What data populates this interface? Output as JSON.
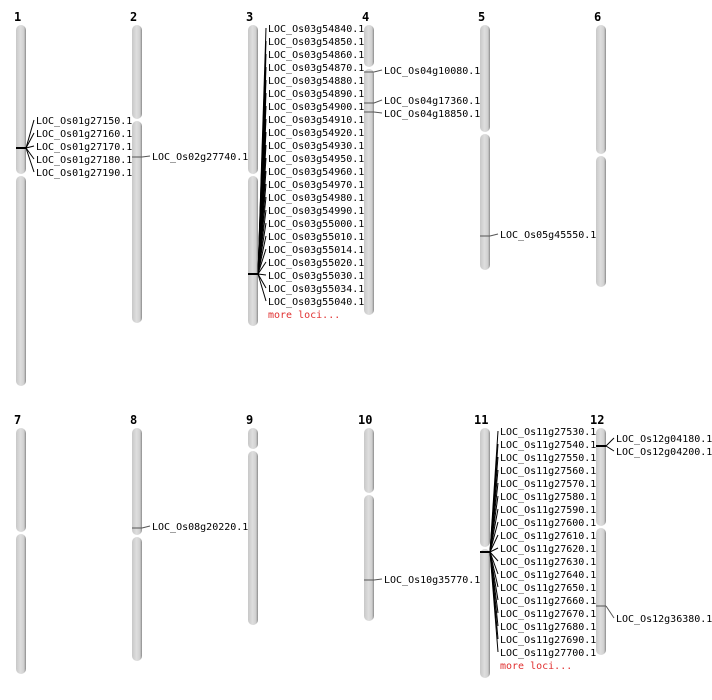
{
  "colors": {
    "chromosome": "#d4d4d4",
    "chromosome_shadow": "#8a8a8a",
    "more_loci": "#e03030"
  },
  "chromosomes": [
    {
      "name": "1",
      "markers": [
        {
          "loci": [
            "LOC_Os01g27150.1",
            "LOC_Os01g27160.1",
            "LOC_Os01g27170.1",
            "LOC_Os01g27180.1",
            "LOC_Os01g27190.1"
          ]
        }
      ]
    },
    {
      "name": "2",
      "markers": [
        {
          "loci": [
            "LOC_Os02g27740.1"
          ]
        }
      ]
    },
    {
      "name": "3",
      "markers": [
        {
          "loci": [
            "LOC_Os03g54840.1",
            "LOC_Os03g54850.1",
            "LOC_Os03g54860.1",
            "LOC_Os03g54870.1",
            "LOC_Os03g54880.1",
            "LOC_Os03g54890.1",
            "LOC_Os03g54900.1",
            "LOC_Os03g54910.1",
            "LOC_Os03g54920.1",
            "LOC_Os03g54930.1",
            "LOC_Os03g54950.1",
            "LOC_Os03g54960.1",
            "LOC_Os03g54970.1",
            "LOC_Os03g54980.1",
            "LOC_Os03g54990.1",
            "LOC_Os03g55000.1",
            "LOC_Os03g55010.1",
            "LOC_Os03g55014.1",
            "LOC_Os03g55020.1",
            "LOC_Os03g55030.1",
            "LOC_Os03g55034.1",
            "LOC_Os03g55040.1"
          ],
          "more": "more loci..."
        }
      ]
    },
    {
      "name": "4",
      "markers": [
        {
          "loci": [
            "LOC_Os04g10080.1"
          ]
        },
        {
          "loci": [
            "LOC_Os04g17360.1"
          ]
        },
        {
          "loci": [
            "LOC_Os04g18850.1"
          ]
        }
      ]
    },
    {
      "name": "5",
      "markers": [
        {
          "loci": [
            "LOC_Os05g45550.1"
          ]
        }
      ]
    },
    {
      "name": "6",
      "markers": []
    },
    {
      "name": "7",
      "markers": []
    },
    {
      "name": "8",
      "markers": [
        {
          "loci": [
            "LOC_Os08g20220.1"
          ]
        }
      ]
    },
    {
      "name": "9",
      "markers": []
    },
    {
      "name": "10",
      "markers": [
        {
          "loci": [
            "LOC_Os10g35770.1"
          ]
        }
      ]
    },
    {
      "name": "11",
      "markers": [
        {
          "loci": [
            "LOC_Os11g27530.1",
            "LOC_Os11g27540.1",
            "LOC_Os11g27550.1",
            "LOC_Os11g27560.1",
            "LOC_Os11g27570.1",
            "LOC_Os11g27580.1",
            "LOC_Os11g27590.1",
            "LOC_Os11g27600.1",
            "LOC_Os11g27610.1",
            "LOC_Os11g27620.1",
            "LOC_Os11g27630.1",
            "LOC_Os11g27640.1",
            "LOC_Os11g27650.1",
            "LOC_Os11g27660.1",
            "LOC_Os11g27670.1",
            "LOC_Os11g27680.1",
            "LOC_Os11g27690.1",
            "LOC_Os11g27700.1"
          ],
          "more": "more loci..."
        }
      ]
    },
    {
      "name": "12",
      "markers": [
        {
          "loci": [
            "LOC_Os12g04180.1",
            "LOC_Os12g04200.1"
          ]
        },
        {
          "loci": [
            "LOC_Os12g36380.1"
          ]
        }
      ]
    }
  ]
}
